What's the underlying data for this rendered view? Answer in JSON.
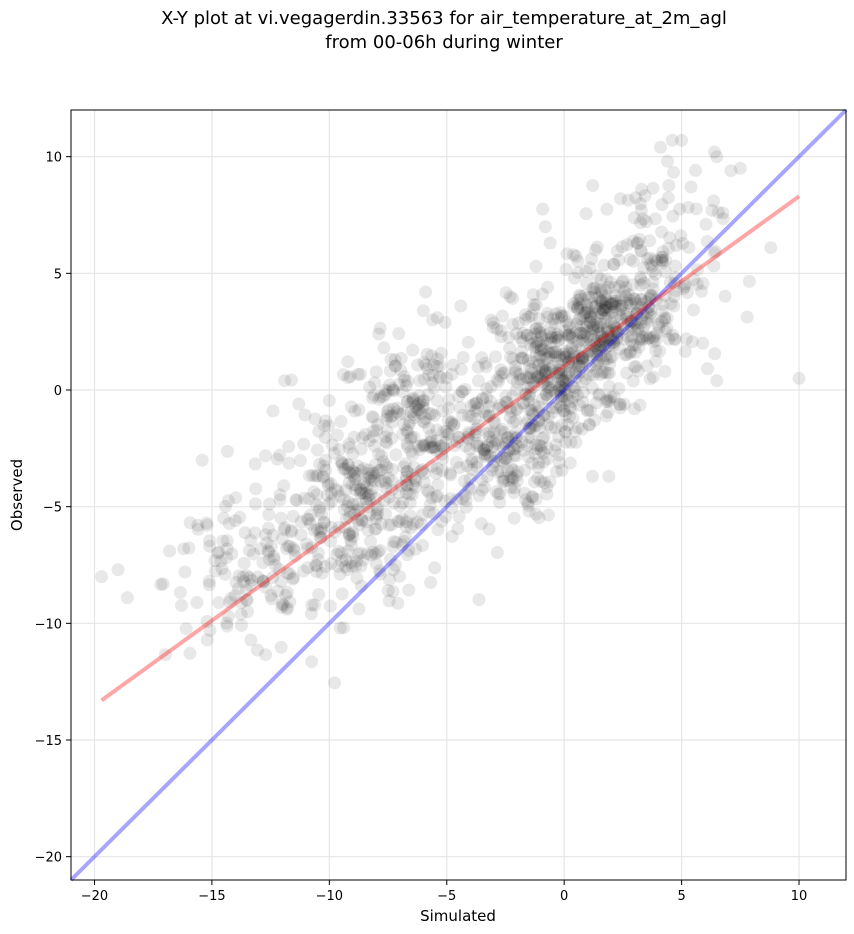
{
  "chart_data": {
    "type": "scatter",
    "title_line1": "X-Y plot at vi.vegagerdin.33563 for air_temperature_at_2m_agl",
    "title_line2": "from 00-06h during winter",
    "xlabel": "Simulated",
    "ylabel": "Observed",
    "xlim": [
      -21,
      12
    ],
    "ylim": [
      -21,
      12
    ],
    "xticks": [
      -20,
      -15,
      -10,
      -5,
      0,
      5,
      10
    ],
    "yticks": [
      -20,
      -15,
      -10,
      -5,
      0,
      5,
      10
    ],
    "tick_labels": [
      "−20",
      "−15",
      "−10",
      "−5",
      "0",
      "5",
      "10"
    ],
    "grid": true,
    "identity_line": {
      "x": [
        -21,
        12
      ],
      "y": [
        -21,
        12
      ],
      "color": "#0000ff"
    },
    "regression_line": {
      "x": [
        -19.7,
        10
      ],
      "y": [
        -13.3,
        8.3
      ],
      "color": "#ff0000"
    },
    "point_color": "#000000",
    "outlier_points": {
      "x": [
        -19.7,
        -19.0,
        -18.6,
        -16.8,
        -16.2,
        -15.2,
        -15.6,
        -15.1,
        -14.5,
        -14.0,
        -12.4,
        -11.9,
        -11.3,
        -11.8,
        -7.9,
        -6.0,
        -5.9,
        -5.4,
        -4.4,
        -2.3,
        1.4,
        -0.8,
        -1.2,
        -1.5,
        0.4,
        4.6,
        4.1,
        4.4,
        5.0,
        5.4,
        6.4,
        6.3,
        6.5,
        7.1,
        7.5,
        8.8,
        10.0,
        5.9,
        6.5,
        -3.7,
        1.9,
        1.2,
        -0.4,
        2.4,
        3.3,
        -0.6
      ],
      "y": [
        -8.0,
        -7.7,
        -8.9,
        -6.9,
        -6.8,
        -5.8,
        -5.8,
        -6.7,
        -5.5,
        -5.6,
        -0.9,
        0.4,
        -0.6,
        -9.4,
        2.4,
        3.4,
        4.2,
        3.1,
        3.6,
        4.0,
        4.9,
        7.0,
        5.3,
        -5.2,
        5.8,
        10.7,
        10.4,
        9.8,
        10.7,
        8.7,
        10.2,
        7.7,
        10.0,
        9.4,
        9.5,
        6.1,
        0.5,
        2.0,
        0.4,
        -3.3,
        -3.7,
        -3.7,
        -2.6,
        8.2,
        8.6,
        6.3
      ]
    },
    "clusters": [
      {
        "cx": -8.8,
        "cy": -5.2,
        "sx": 1.9,
        "sy": 1.9,
        "n": 300
      },
      {
        "cx": -13.6,
        "cy": -8.2,
        "sx": 1.7,
        "sy": 1.7,
        "n": 110
      },
      {
        "cx": -6.2,
        "cy": -1.4,
        "sx": 1.9,
        "sy": 1.8,
        "n": 240
      },
      {
        "cx": -2.6,
        "cy": -2.4,
        "sx": 1.3,
        "sy": 1.6,
        "n": 190
      },
      {
        "cx": -0.4,
        "cy": 0.8,
        "sx": 1.3,
        "sy": 1.5,
        "n": 290
      },
      {
        "cx": 1.9,
        "cy": 2.6,
        "sx": 1.2,
        "sy": 1.3,
        "n": 270
      },
      {
        "cx": 3.6,
        "cy": 5.2,
        "sx": 1.5,
        "sy": 2.0,
        "n": 140
      }
    ]
  }
}
